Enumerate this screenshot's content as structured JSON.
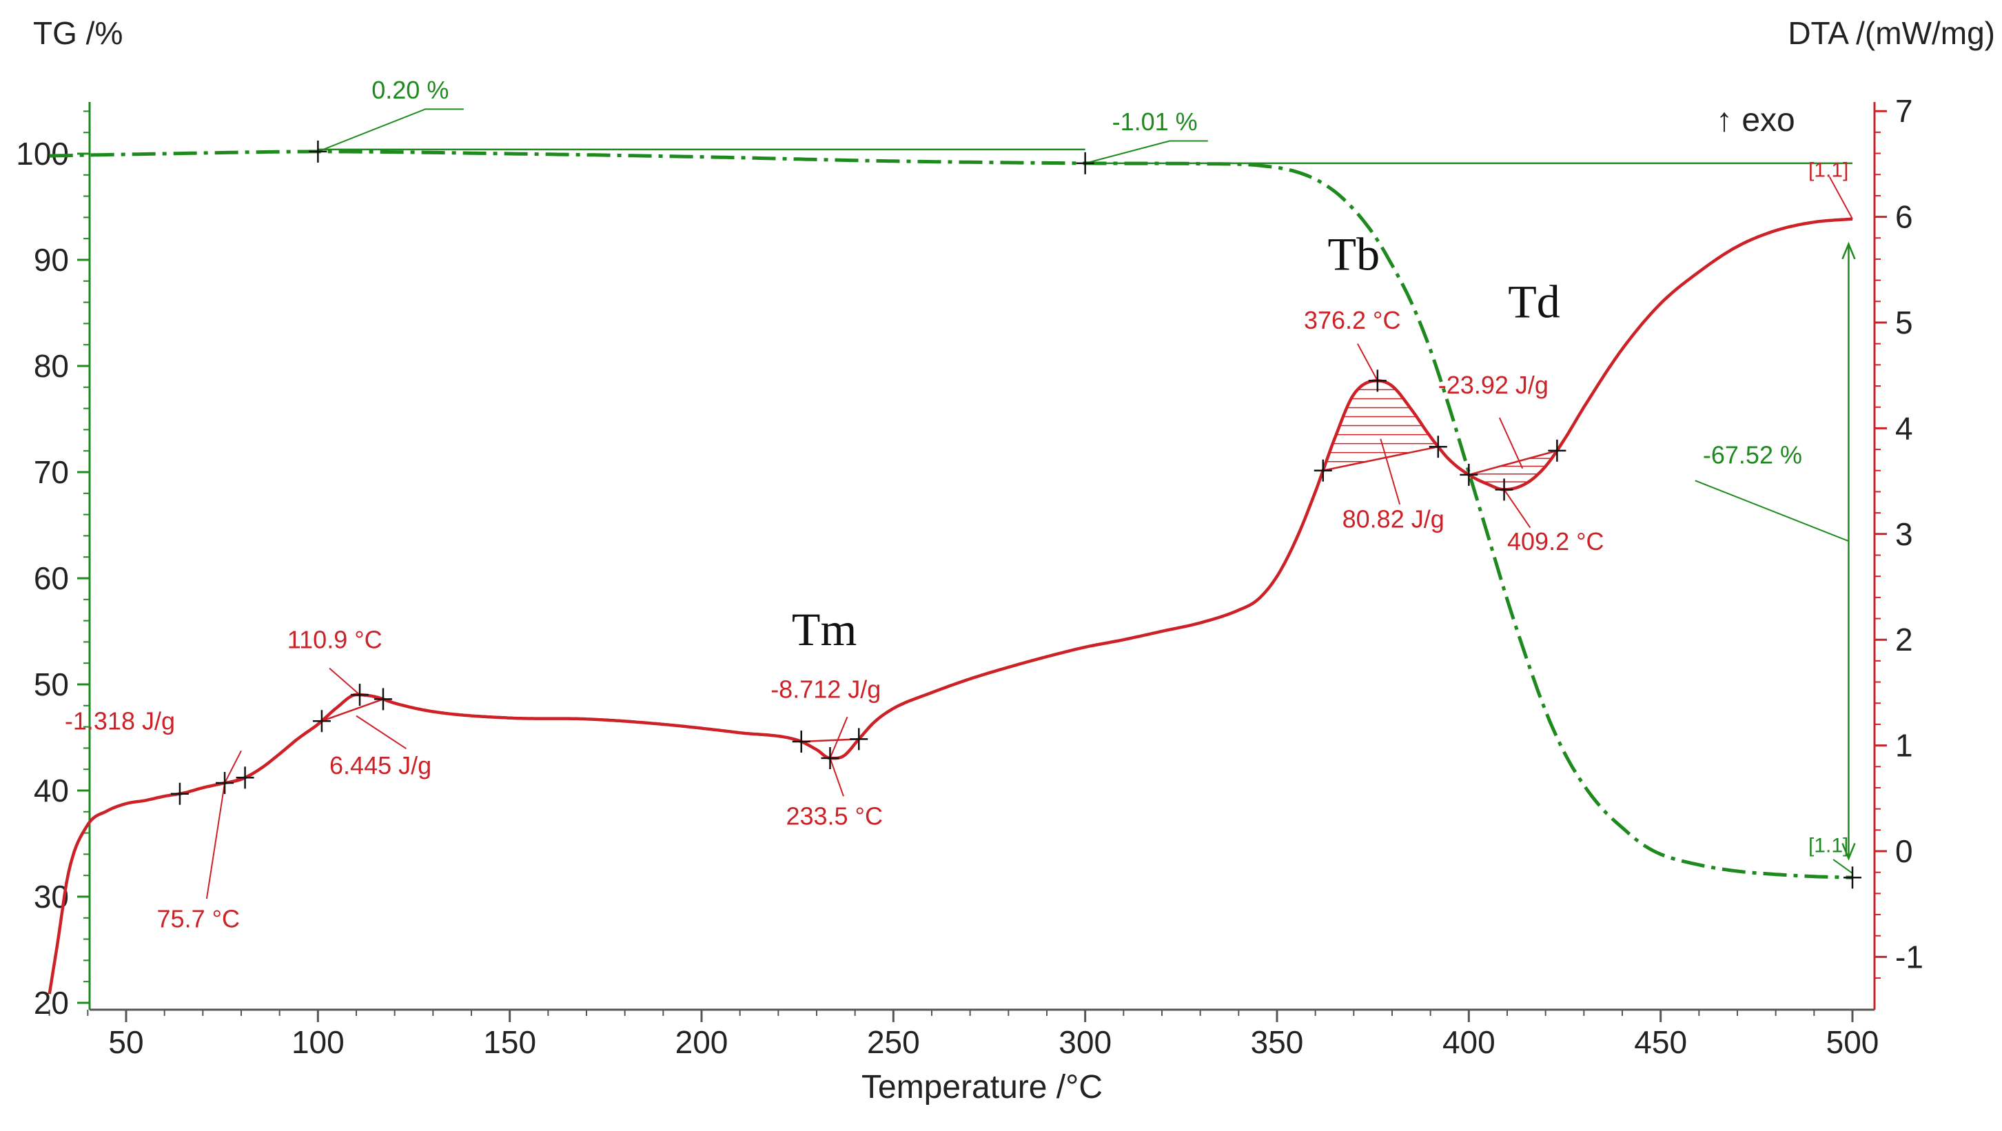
{
  "chart_data": {
    "type": "line",
    "title": "",
    "xlabel": "Temperature /°C",
    "ylabel_left": "TG /%",
    "ylabel_right": "DTA /(mW/mg)",
    "xlim": [
      25,
      502
    ],
    "ylim_left": [
      19,
      106
    ],
    "ylim_right": [
      -1.4,
      7
    ],
    "x_ticks": [
      50,
      100,
      150,
      200,
      250,
      300,
      350,
      400,
      450,
      500
    ],
    "y_left_ticks": [
      20,
      30,
      40,
      50,
      60,
      70,
      80,
      90,
      100
    ],
    "y_right_ticks": [
      -1,
      0,
      1,
      2,
      3,
      4,
      5,
      6,
      7
    ],
    "grid": false,
    "colors": {
      "tg": "#1e8a1e",
      "dta": "#cc2127",
      "text": "#222222"
    },
    "exo_label": "↑ exo",
    "series": [
      {
        "name": "TG",
        "axis": "left",
        "style": "dash-dot",
        "x": [
          30,
          60,
          100,
          150,
          200,
          250,
          300,
          330,
          345,
          355,
          362,
          368,
          375,
          380,
          385,
          390,
          395,
          400,
          405,
          410,
          415,
          420,
          425,
          430,
          435,
          440,
          445,
          450,
          460,
          470,
          480,
          490,
          500
        ],
        "y": [
          99.8,
          100.0,
          100.2,
          100.0,
          99.7,
          99.3,
          99.1,
          99.05,
          98.9,
          98.3,
          97.2,
          95.5,
          92.5,
          89.5,
          86.0,
          81.5,
          76.0,
          70.0,
          64.0,
          58.0,
          52.5,
          47.5,
          43.5,
          40.5,
          38.2,
          36.5,
          35.0,
          34.0,
          33.0,
          32.4,
          32.1,
          31.9,
          31.8
        ]
      },
      {
        "name": "DTA",
        "axis": "right",
        "style": "solid",
        "x": [
          30,
          32,
          35,
          40,
          45,
          50,
          55,
          60,
          65,
          70,
          75,
          80,
          85,
          90,
          95,
          100,
          105,
          110,
          115,
          120,
          130,
          150,
          170,
          190,
          210,
          225,
          230,
          233.5,
          237,
          241,
          245,
          250,
          260,
          270,
          280,
          290,
          300,
          310,
          320,
          330,
          340,
          345,
          350,
          355,
          360,
          365,
          370,
          376.2,
          380,
          385,
          390,
          395,
          400,
          405,
          409.2,
          415,
          420,
          425,
          430,
          440,
          450,
          460,
          470,
          480,
          490,
          500
        ],
        "y": [
          -1.35,
          -0.9,
          -0.2,
          0.25,
          0.38,
          0.45,
          0.48,
          0.52,
          0.55,
          0.6,
          0.64,
          0.68,
          0.78,
          0.92,
          1.07,
          1.2,
          1.36,
          1.48,
          1.46,
          1.4,
          1.32,
          1.26,
          1.25,
          1.2,
          1.12,
          1.05,
          0.96,
          0.88,
          0.9,
          1.06,
          1.22,
          1.35,
          1.5,
          1.63,
          1.74,
          1.84,
          1.93,
          2.0,
          2.08,
          2.16,
          2.28,
          2.38,
          2.6,
          2.95,
          3.4,
          3.9,
          4.32,
          4.45,
          4.4,
          4.18,
          3.92,
          3.7,
          3.56,
          3.47,
          3.42,
          3.48,
          3.64,
          3.9,
          4.2,
          4.75,
          5.18,
          5.48,
          5.72,
          5.87,
          5.95,
          5.98
        ]
      }
    ],
    "annotations": {
      "tg_steps": [
        "0.20 %",
        "-1.01 %",
        "-67.52 %"
      ],
      "dta": {
        "a1": "-1.318 J/g",
        "a2": "75.7 °C",
        "a3": "110.9 °C",
        "a4": "6.445 J/g",
        "a5": "-8.712 J/g",
        "a6": "233.5 °C",
        "a7": "376.2 °C",
        "a8": "80.82 J/g",
        "a9": "-23.92 J/g",
        "a10": "409.2 °C"
      },
      "segment_marks": [
        "[1.1]",
        "[1.1]"
      ],
      "phase_labels": {
        "tm": "Tm",
        "tb": "Tb",
        "td": "Td"
      }
    }
  }
}
